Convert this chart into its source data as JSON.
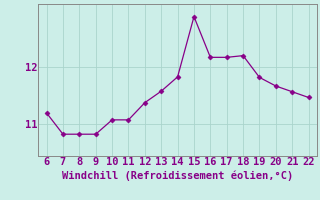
{
  "x": [
    6,
    7,
    8,
    9,
    10,
    11,
    12,
    13,
    14,
    15,
    16,
    17,
    18,
    19,
    20,
    21,
    22
  ],
  "y": [
    11.2,
    10.83,
    10.83,
    10.83,
    11.08,
    11.08,
    11.38,
    11.58,
    11.83,
    12.88,
    12.17,
    12.17,
    12.2,
    11.82,
    11.67,
    11.57,
    11.47
  ],
  "line_color": "#880088",
  "marker": "D",
  "marker_size": 2.5,
  "bg_color": "#cceee8",
  "grid_color": "#aad4cc",
  "xlabel": "Windchill (Refroidissement éolien,°C)",
  "xlabel_color": "#880088",
  "yticks": [
    11,
    12
  ],
  "xticks": [
    6,
    7,
    8,
    9,
    10,
    11,
    12,
    13,
    14,
    15,
    16,
    17,
    18,
    19,
    20,
    21,
    22
  ],
  "ylim": [
    10.45,
    13.1
  ],
  "xlim": [
    5.5,
    22.5
  ],
  "tick_color": "#880088",
  "spine_color": "#888888",
  "font_size": 7.5
}
